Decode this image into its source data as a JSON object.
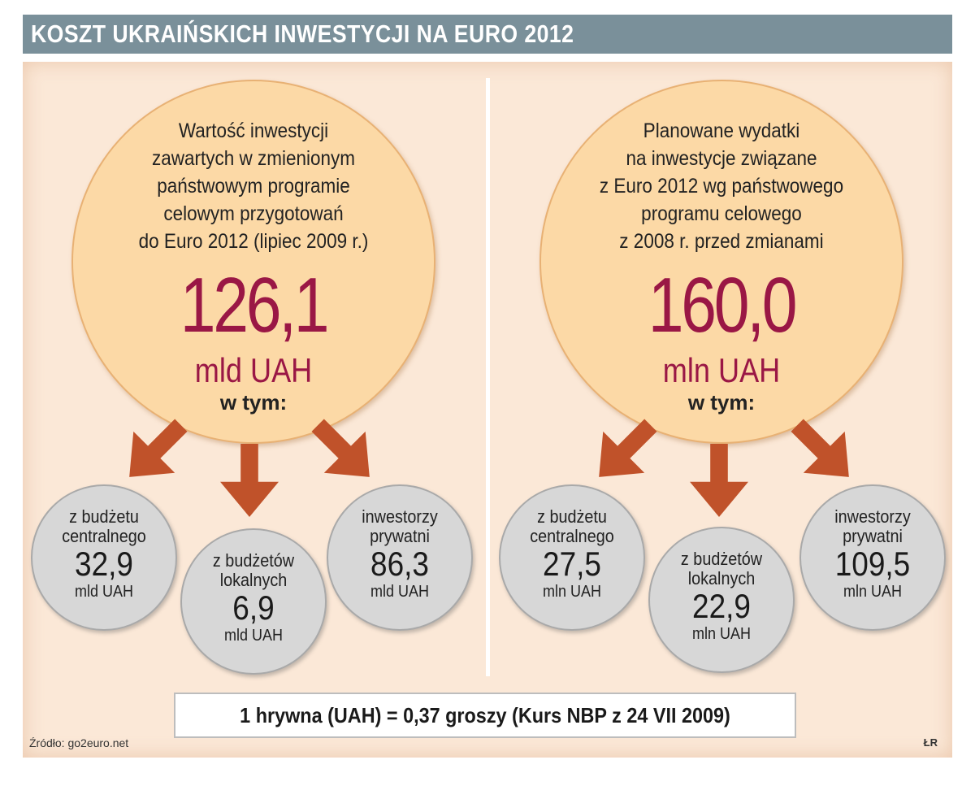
{
  "title": "KOSZT UKRAIŃSKICH INWESTYCJI NA EURO 2012",
  "left": {
    "description": [
      "Wartość inwestycji",
      "zawartych w zmienionym",
      "państwowym programie",
      "celowym przygotowań",
      "do Euro 2012 (lipiec 2009 r.)"
    ],
    "value": "126,1",
    "unit": "mld UAH",
    "in_which": "w tym:",
    "parts": [
      {
        "label": [
          "z budżetu",
          "centralnego"
        ],
        "value": "32,9",
        "unit": "mld UAH"
      },
      {
        "label": [
          "z budżetów",
          "lokalnych"
        ],
        "value": "6,9",
        "unit": "mld UAH"
      },
      {
        "label": [
          "inwestorzy",
          "prywatni"
        ],
        "value": "86,3",
        "unit": "mld UAH"
      }
    ]
  },
  "right": {
    "description": [
      "Planowane wydatki",
      "na inwestycje związane",
      "z Euro 2012 wg państwowego",
      "programu celowego",
      "z 2008 r. przed zmianami"
    ],
    "value": "160,0",
    "unit": "mln UAH",
    "in_which": "w tym:",
    "parts": [
      {
        "label": [
          "z budżetu",
          "centralnego"
        ],
        "value": "27,5",
        "unit": "mln UAH"
      },
      {
        "label": [
          "z budżetów",
          "lokalnych"
        ],
        "value": "22,9",
        "unit": "mln UAH"
      },
      {
        "label": [
          "inwestorzy",
          "prywatni"
        ],
        "value": "109,5",
        "unit": "mln UAH"
      }
    ]
  },
  "exchange_rate": "1 hrywna (UAH) = 0,37 groszy (Kurs NBP z 24 VII 2009)",
  "source": "Źródło: go2euro.net",
  "credit": "ŁR",
  "colors": {
    "title_bar": "#7a909a",
    "panel_bg": "#fbe8d7",
    "big_circle": "#fcd9a6",
    "value_text": "#9a1745",
    "arrow": "#c0522a",
    "small_circle": "#d7d7d7"
  }
}
